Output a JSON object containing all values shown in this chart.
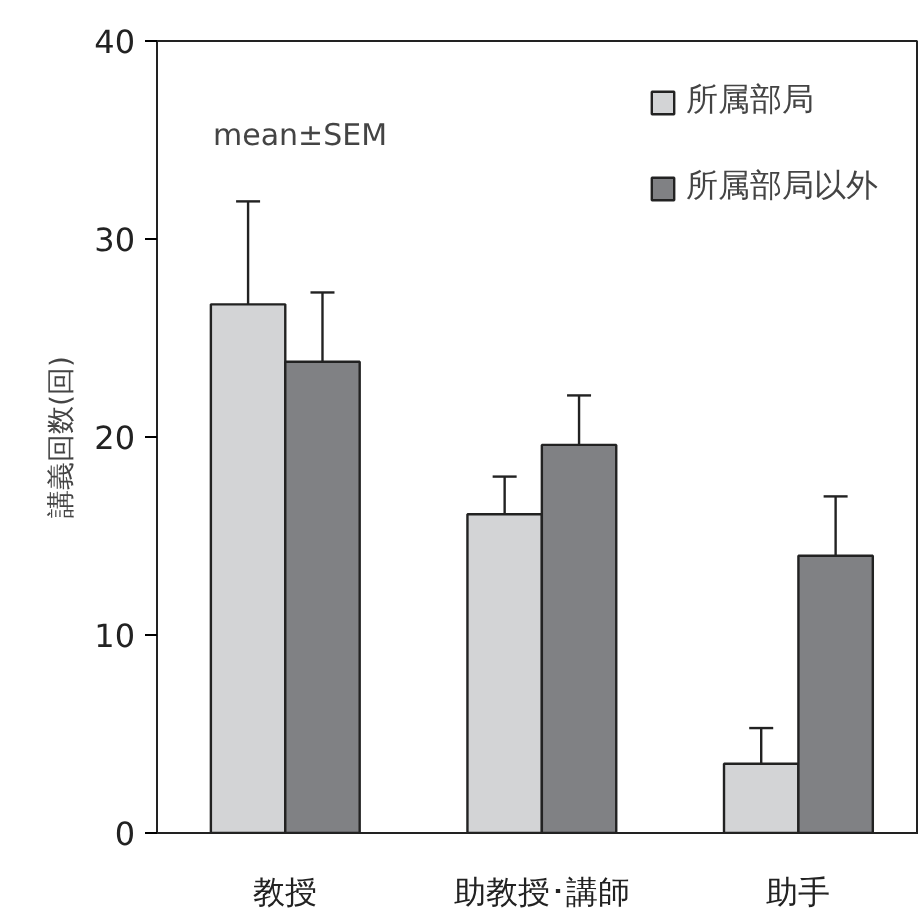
{
  "chart_data": {
    "type": "bar",
    "ylabel": "講義回数(回)",
    "categories": [
      "教授",
      "助教授･講師",
      "助手"
    ],
    "series": [
      {
        "name": "所属部局",
        "color": "#d3d4d6",
        "values": [
          26.7,
          16.1,
          3.5
        ],
        "errors": [
          [
            26.7,
            31.9
          ],
          [
            16.1,
            18.0
          ],
          [
            3.5,
            5.3
          ]
        ]
      },
      {
        "name": "所属部局以外",
        "color": "#808184",
        "values": [
          23.8,
          19.6,
          14.0
        ],
        "errors": [
          [
            23.8,
            27.3
          ],
          [
            19.6,
            22.1
          ],
          [
            14.0,
            17.0
          ]
        ]
      }
    ],
    "ylim": [
      0,
      40
    ],
    "yticks": [
      0,
      10,
      20,
      30,
      40
    ],
    "grid": false,
    "legend": "top right",
    "annotations": [
      "mean±SEM"
    ]
  }
}
